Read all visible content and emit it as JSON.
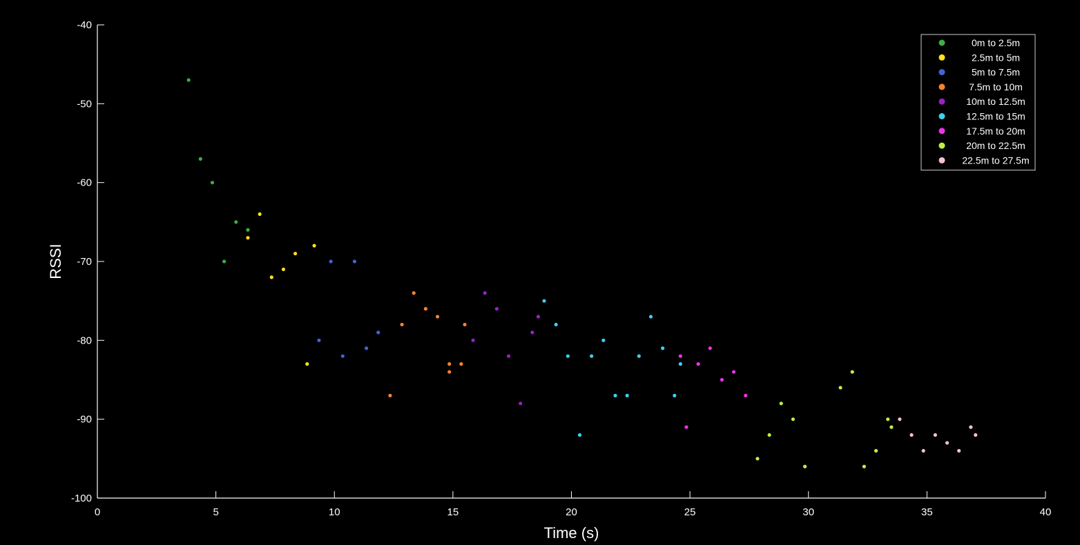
{
  "chart_data": {
    "type": "scatter",
    "title": "",
    "xlabel": "Time (s)",
    "ylabel": "RSSI",
    "xlim": [
      0,
      40
    ],
    "ylim": [
      -100,
      -40
    ],
    "xticks": [
      0,
      5,
      10,
      15,
      20,
      25,
      30,
      35,
      40
    ],
    "yticks": [
      -100,
      -90,
      -80,
      -70,
      -60,
      -50,
      -40
    ],
    "grid": false,
    "legend_position": "top-right",
    "series": [
      {
        "name": "0m to 2.5m",
        "color": "#3cb043",
        "points": [
          [
            3.85,
            -47
          ],
          [
            4.35,
            -57
          ],
          [
            4.85,
            -60
          ],
          [
            5.35,
            -70
          ],
          [
            5.85,
            -65
          ],
          [
            6.35,
            -66
          ]
        ]
      },
      {
        "name": "2.5m to 5m",
        "color": "#ffe119",
        "points": [
          [
            6.35,
            -67
          ],
          [
            6.85,
            -64
          ],
          [
            7.35,
            -72
          ],
          [
            7.85,
            -71
          ],
          [
            8.35,
            -69
          ],
          [
            8.85,
            -83
          ],
          [
            9.15,
            -68
          ]
        ]
      },
      {
        "name": "5m to 7.5m",
        "color": "#4363d8",
        "points": [
          [
            9.35,
            -80
          ],
          [
            9.85,
            -70
          ],
          [
            10.35,
            -82
          ],
          [
            10.85,
            -70
          ],
          [
            11.35,
            -81
          ],
          [
            11.85,
            -79
          ]
        ]
      },
      {
        "name": "7.5m to 10m",
        "color": "#f58231",
        "points": [
          [
            12.35,
            -87
          ],
          [
            12.85,
            -78
          ],
          [
            13.35,
            -74
          ],
          [
            13.85,
            -76
          ],
          [
            14.35,
            -77
          ],
          [
            14.85,
            -83
          ],
          [
            14.85,
            -84
          ],
          [
            15.35,
            -83
          ],
          [
            15.5,
            -78
          ]
        ]
      },
      {
        "name": "10m to 12.5m",
        "color": "#9d1fc7",
        "points": [
          [
            15.85,
            -80
          ],
          [
            16.35,
            -74
          ],
          [
            16.85,
            -76
          ],
          [
            17.35,
            -82
          ],
          [
            17.85,
            -88
          ],
          [
            18.35,
            -79
          ],
          [
            18.6,
            -77
          ]
        ]
      },
      {
        "name": "12.5m to 15m",
        "color": "#3dd0f0",
        "points": [
          [
            18.85,
            -75
          ],
          [
            19.35,
            -78
          ],
          [
            19.85,
            -82
          ],
          [
            20.35,
            -92
          ],
          [
            20.85,
            -82
          ],
          [
            21.35,
            -80
          ],
          [
            21.85,
            -87
          ],
          [
            22.35,
            -87
          ],
          [
            22.85,
            -82
          ],
          [
            23.35,
            -77
          ],
          [
            23.85,
            -81
          ],
          [
            24.35,
            -87
          ],
          [
            24.6,
            -83
          ]
        ]
      },
      {
        "name": "17.5m to 20m",
        "color": "#f032e6",
        "points": [
          [
            24.6,
            -82
          ],
          [
            24.85,
            -91
          ],
          [
            25.35,
            -83
          ],
          [
            25.85,
            -81
          ],
          [
            26.35,
            -85
          ],
          [
            26.85,
            -84
          ],
          [
            27.35,
            -87
          ]
        ]
      },
      {
        "name": "20m to 22.5m",
        "color": "#bfef45",
        "points": [
          [
            27.85,
            -95
          ],
          [
            28.35,
            -92
          ],
          [
            28.85,
            -88
          ],
          [
            29.35,
            -90
          ],
          [
            29.85,
            -96
          ],
          [
            31.35,
            -86
          ],
          [
            31.85,
            -84
          ],
          [
            32.35,
            -96
          ],
          [
            32.85,
            -94
          ],
          [
            33.35,
            -90
          ],
          [
            33.5,
            -91
          ]
        ]
      },
      {
        "name": "22.5m to 27.5m",
        "color": "#fabed4",
        "points": [
          [
            33.85,
            -90
          ],
          [
            34.35,
            -92
          ],
          [
            34.85,
            -94
          ],
          [
            35.35,
            -92
          ],
          [
            35.85,
            -93
          ],
          [
            36.35,
            -94
          ],
          [
            36.85,
            -91
          ],
          [
            37.05,
            -92
          ]
        ]
      }
    ]
  }
}
